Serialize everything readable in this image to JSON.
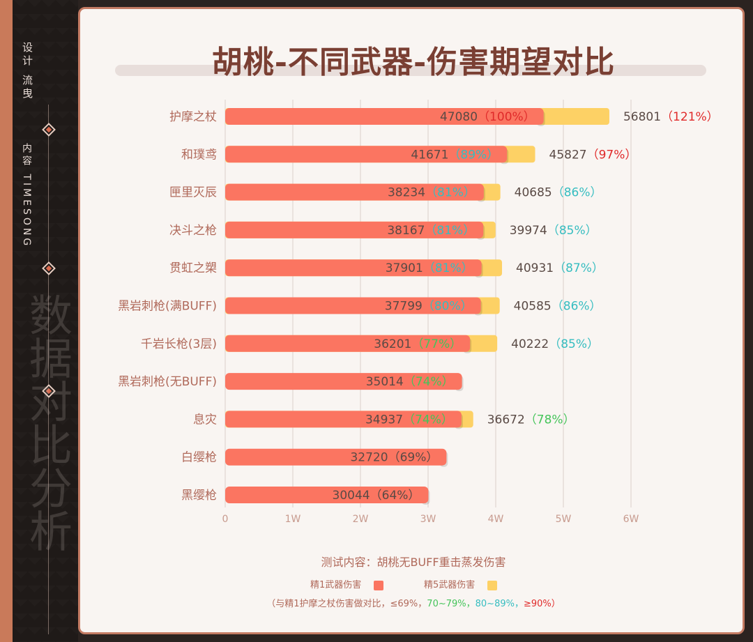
{
  "sidebar": {
    "top_text": "设计 流曳",
    "mid_text": "内容 TIMESONG",
    "watermark": "数据对比分析"
  },
  "title": "胡桃-不同武器-伤害期望对比",
  "notes": {
    "test_content": "测试内容：胡桃无BUFF重击蒸发伤害",
    "legend_r1": "精1武器伤害",
    "legend_r5": "精5武器伤害",
    "compare_prefix": "（与精1护摩之杖伤害做对比，",
    "compare_le69": "≤69%，",
    "compare_70": "70~79%，",
    "compare_80": "80~89%，",
    "compare_90": "≥90%）"
  },
  "colors": {
    "r1": "#fb7561",
    "r5": "#fdd165",
    "pct_red": "#e02a2a",
    "pct_cyan": "#36bdc0",
    "pct_green": "#45c45a",
    "pct_plain": "#5a4a45",
    "label": "#b0695a"
  },
  "chart_data": {
    "type": "bar",
    "orientation": "horizontal",
    "title": "胡桃-不同武器-伤害期望对比",
    "categories": [
      "护摩之杖",
      "和璞鸢",
      "匣里灭辰",
      "决斗之枪",
      "贯虹之槊",
      "黑岩刺枪(满BUFF)",
      "千岩长枪(3层)",
      "黑岩刺枪(无BUFF)",
      "息灾",
      "白缨枪",
      "黑缨枪"
    ],
    "series": [
      {
        "name": "精1武器伤害",
        "values": [
          47080,
          41671,
          38234,
          38167,
          37901,
          37799,
          36201,
          35014,
          34937,
          32720,
          30044
        ],
        "labels": [
          "（100%）",
          "（89%）",
          "（81%）",
          "（81%）",
          "（81%）",
          "（80%）",
          "（77%）",
          "（74%）",
          "（74%）",
          "（69%）",
          "（64%）"
        ],
        "label_colors": [
          "red",
          "cyan",
          "cyan",
          "cyan",
          "cyan",
          "cyan",
          "green",
          "green",
          "green",
          "plain",
          "plain"
        ]
      },
      {
        "name": "精5武器伤害",
        "values": [
          56801,
          45827,
          40685,
          39974,
          40931,
          40585,
          40222,
          null,
          36672,
          null,
          null
        ],
        "labels": [
          "（121%）",
          "（97%）",
          "（86%）",
          "（85%）",
          "（87%）",
          "（86%）",
          "（85%）",
          null,
          "（78%）",
          null,
          null
        ],
        "label_colors": [
          "red",
          "red",
          "cyan",
          "cyan",
          "cyan",
          "cyan",
          "cyan",
          null,
          "green",
          null,
          null
        ]
      }
    ],
    "xticks": [
      "0",
      "1W",
      "2W",
      "3W",
      "4W",
      "5W",
      "6W"
    ],
    "xlim": [
      0,
      60000
    ],
    "grid": true
  }
}
